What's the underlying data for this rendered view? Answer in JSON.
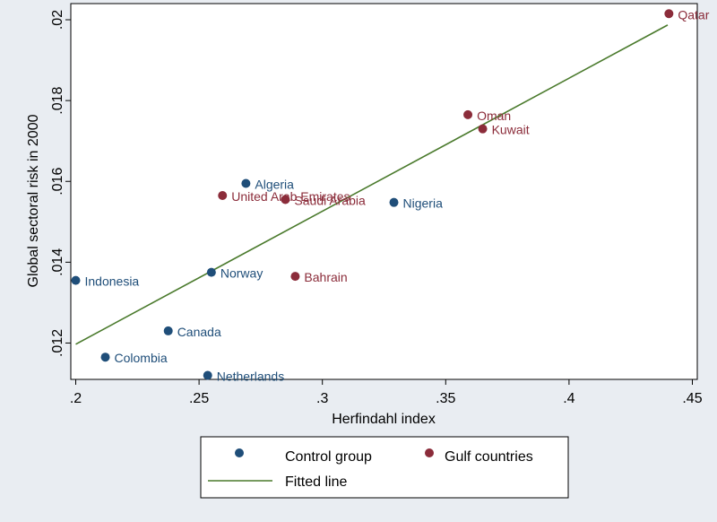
{
  "chart_data": {
    "type": "scatter",
    "xlabel": "Herfindahl index",
    "ylabel": "Global sectoral risk in 2000",
    "xlim": [
      0.198,
      0.452
    ],
    "ylim": [
      0.0111,
      0.0204
    ],
    "x_ticks": [
      {
        "value": 0.2,
        "label": ".2"
      },
      {
        "value": 0.25,
        "label": ".25"
      },
      {
        "value": 0.3,
        "label": ".3"
      },
      {
        "value": 0.35,
        "label": ".35"
      },
      {
        "value": 0.4,
        "label": ".4"
      },
      {
        "value": 0.45,
        "label": ".45"
      }
    ],
    "y_ticks": [
      {
        "value": 0.012,
        "label": ".012"
      },
      {
        "value": 0.014,
        "label": ".014"
      },
      {
        "value": 0.016,
        "label": ".016"
      },
      {
        "value": 0.018,
        "label": ".018"
      },
      {
        "value": 0.02,
        "label": ".02"
      }
    ],
    "grid": false,
    "series": [
      {
        "name": "Control group",
        "color": "#1f4e79",
        "points": [
          {
            "label": "Indonesia",
            "x": 0.2,
            "y": 0.01355
          },
          {
            "label": "Colombia",
            "x": 0.212,
            "y": 0.01165
          },
          {
            "label": "Canada",
            "x": 0.2375,
            "y": 0.0123
          },
          {
            "label": "Netherlands",
            "x": 0.2535,
            "y": 0.0112
          },
          {
            "label": "Norway",
            "x": 0.255,
            "y": 0.01375
          },
          {
            "label": "Algeria",
            "x": 0.269,
            "y": 0.01595
          },
          {
            "label": "Nigeria",
            "x": 0.329,
            "y": 0.01548
          }
        ]
      },
      {
        "name": "Gulf countries",
        "color": "#8b2c3a",
        "points": [
          {
            "label": "United Arab Emirates",
            "x": 0.2595,
            "y": 0.01565
          },
          {
            "label": "Saudi Arabia",
            "x": 0.285,
            "y": 0.01555
          },
          {
            "label": "Bahrain",
            "x": 0.289,
            "y": 0.01365
          },
          {
            "label": "Oman",
            "x": 0.359,
            "y": 0.01765
          },
          {
            "label": "Kuwait",
            "x": 0.365,
            "y": 0.0173
          },
          {
            "label": "Qatar",
            "x": 0.4405,
            "y": 0.02015
          }
        ]
      }
    ],
    "fitted_line": {
      "name": "Fitted line",
      "color": "#4a7a2c",
      "x": [
        0.2,
        0.44
      ],
      "y": [
        0.01197,
        0.01987
      ]
    },
    "legend_position": "bottom"
  }
}
